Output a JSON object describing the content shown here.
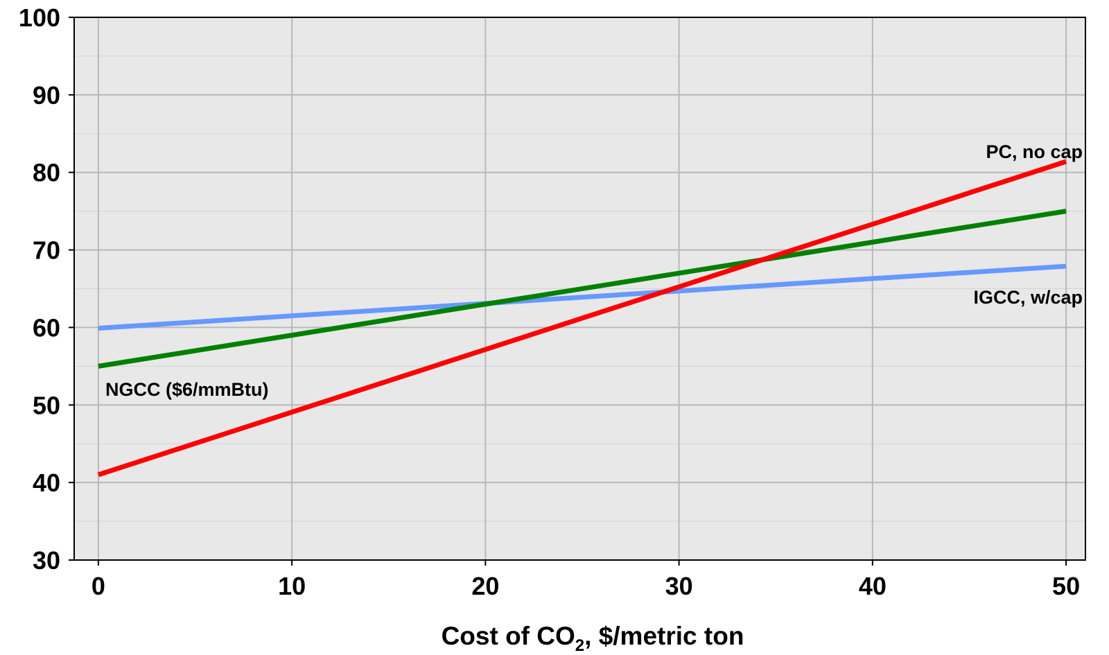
{
  "chart_data": {
    "type": "line",
    "title": "",
    "xlabel": "Cost of CO",
    "xlabel_subscript": "2",
    "xlabel_suffix": ", $/metric ton",
    "ylabel": "",
    "xlim": [
      -1.25,
      51
    ],
    "ylim": [
      30,
      100
    ],
    "x_ticks": [
      0,
      10,
      20,
      30,
      40,
      50
    ],
    "y_ticks": [
      30,
      40,
      50,
      60,
      70,
      80,
      90,
      100
    ],
    "y_minor_step": 5,
    "grid": true,
    "legend": "inline labels",
    "background_color": "#e8e8e8",
    "series": [
      {
        "name": "PC, no cap",
        "color": "#ff0000",
        "x": [
          0,
          50
        ],
        "y": [
          41,
          81.4
        ]
      },
      {
        "name": "NGCC ($6/mmBtu)",
        "color": "#008000",
        "x": [
          0,
          50
        ],
        "y": [
          55,
          75
        ]
      },
      {
        "name": "IGCC, w/cap",
        "color": "#6699ff",
        "x": [
          0,
          50
        ],
        "y": [
          59.9,
          67.9
        ]
      }
    ]
  }
}
